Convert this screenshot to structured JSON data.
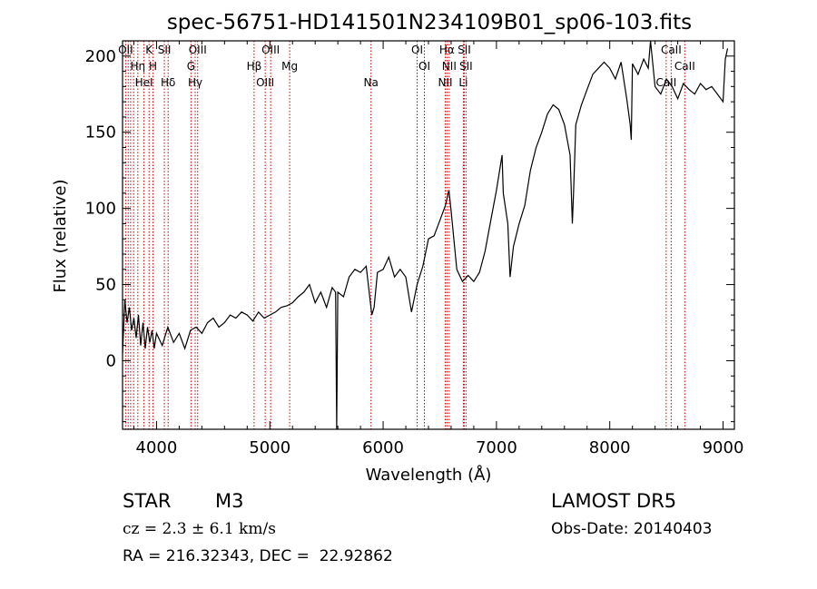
{
  "chart_data": {
    "type": "line",
    "title": "spec-56751-HD141501N234109B01_sp06-103.fits",
    "xlabel": "Wavelength (Å)",
    "ylabel": "Flux (relative)",
    "xlim": [
      3700,
      9100
    ],
    "ylim": [
      -45,
      210
    ],
    "x_ticks": [
      "4000",
      "5000",
      "6000",
      "7000",
      "8000",
      "9000"
    ],
    "y_ticks": [
      "0",
      "50",
      "100",
      "150",
      "200"
    ],
    "series": [
      {
        "color": "#000000",
        "x": [
          3700,
          3720,
          3740,
          3760,
          3780,
          3800,
          3820,
          3840,
          3860,
          3880,
          3900,
          3920,
          3940,
          3960,
          3980,
          4000,
          4050,
          4100,
          4150,
          4200,
          4250,
          4300,
          4350,
          4400,
          4450,
          4500,
          4550,
          4600,
          4650,
          4700,
          4750,
          4800,
          4850,
          4900,
          4950,
          5000,
          5050,
          5100,
          5150,
          5200,
          5250,
          5300,
          5350,
          5400,
          5450,
          5500,
          5550,
          5580,
          5590,
          5600,
          5650,
          5700,
          5750,
          5800,
          5850,
          5900,
          5920,
          5950,
          6000,
          6050,
          6100,
          6150,
          6200,
          6250,
          6300,
          6350,
          6400,
          6450,
          6500,
          6550,
          6580,
          6600,
          6650,
          6700,
          6750,
          6800,
          6850,
          6900,
          6950,
          7000,
          7050,
          7060,
          7100,
          7120,
          7150,
          7200,
          7250,
          7300,
          7350,
          7400,
          7450,
          7500,
          7550,
          7600,
          7650,
          7670,
          7680,
          7700,
          7750,
          7800,
          7850,
          7900,
          7950,
          8000,
          8050,
          8100,
          8150,
          8180,
          8190,
          8200,
          8250,
          8300,
          8340,
          8360,
          8400,
          8450,
          8500,
          8550,
          8600,
          8650,
          8700,
          8750,
          8800,
          8850,
          8900,
          8950,
          9000,
          9020,
          9040
        ],
        "y": [
          5,
          40,
          25,
          35,
          20,
          28,
          15,
          30,
          10,
          25,
          8,
          22,
          12,
          20,
          8,
          18,
          10,
          22,
          12,
          18,
          8,
          20,
          22,
          18,
          25,
          28,
          22,
          25,
          30,
          28,
          32,
          30,
          26,
          32,
          28,
          30,
          32,
          35,
          36,
          38,
          42,
          45,
          50,
          38,
          45,
          35,
          48,
          45,
          -45,
          45,
          42,
          55,
          60,
          58,
          62,
          30,
          35,
          58,
          60,
          68,
          55,
          60,
          55,
          32,
          50,
          62,
          80,
          82,
          92,
          102,
          112,
          98,
          60,
          52,
          56,
          52,
          58,
          72,
          92,
          112,
          135,
          110,
          90,
          55,
          75,
          90,
          102,
          125,
          140,
          150,
          162,
          168,
          165,
          155,
          135,
          90,
          110,
          155,
          168,
          178,
          188,
          192,
          196,
          192,
          185,
          196,
          172,
          155,
          145,
          195,
          188,
          198,
          192,
          210,
          180,
          175,
          185,
          180,
          172,
          182,
          178,
          175,
          182,
          178,
          180,
          175,
          170,
          198,
          205
        ]
      }
    ],
    "lines": [
      {
        "x": 3727,
        "label": "OII"
      },
      {
        "x": 3750,
        "label": ""
      },
      {
        "x": 3771,
        "label": ""
      },
      {
        "x": 3798,
        "label": ""
      },
      {
        "x": 3835,
        "label": "Hη"
      },
      {
        "x": 3889,
        "label": "HeI"
      },
      {
        "x": 3934,
        "label": "K"
      },
      {
        "x": 3969,
        "label": "H"
      },
      {
        "x": 4102,
        "label": "Hδ"
      },
      {
        "x": 4069,
        "label": "SII"
      },
      {
        "x": 4304,
        "label": "G"
      },
      {
        "x": 4341,
        "label": "Hγ"
      },
      {
        "x": 4363,
        "label": "OIII"
      },
      {
        "x": 4861,
        "label": "Hβ"
      },
      {
        "x": 4959,
        "label": "OIII"
      },
      {
        "x": 5007,
        "label": "OIII"
      },
      {
        "x": 5175,
        "label": "Mg"
      },
      {
        "x": 5893,
        "label": "Na"
      },
      {
        "x": 6300,
        "label": "OI"
      },
      {
        "x": 6364,
        "label": "OI"
      },
      {
        "x": 6548,
        "label": "NII"
      },
      {
        "x": 6563,
        "label": "Hα"
      },
      {
        "x": 6583,
        "label": "NII"
      },
      {
        "x": 6708,
        "label": "Li"
      },
      {
        "x": 6716,
        "label": "SII"
      },
      {
        "x": 6731,
        "label": "SII"
      },
      {
        "x": 8498,
        "label": "CaII"
      },
      {
        "x": 8542,
        "label": "CaII"
      },
      {
        "x": 8662,
        "label": "CaII"
      }
    ],
    "line_color": "#c80000",
    "grid": false
  },
  "info": {
    "class_label": "STAR",
    "subclass": "M3",
    "survey": "LAMOST DR5",
    "cz": "cz = 2.3 ± 6.1 km/s",
    "obs_date": "Obs-Date: 20140403",
    "coords": "RA = 216.32343, DEC =  22.92862"
  }
}
